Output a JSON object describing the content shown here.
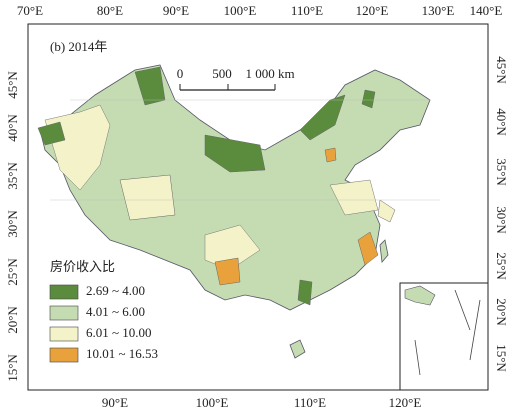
{
  "panel_label": "(b) 2014年",
  "top_axis": [
    "70°E",
    "80°E",
    "90°E",
    "100°E",
    "110°E",
    "120°E",
    "130°E",
    "140°E"
  ],
  "bottom_axis": [
    "90°E",
    "100°E",
    "110°E",
    "120°E"
  ],
  "left_axis": [
    "45°N",
    "40°N",
    "35°N",
    "30°N",
    "25°N",
    "20°N",
    "15°N"
  ],
  "right_axis": [
    "45°N",
    "40°N",
    "35°N",
    "30°N",
    "25°N",
    "20°N",
    "15°N"
  ],
  "scale_bar": {
    "labels": [
      "0",
      "500",
      "1 000 km"
    ]
  },
  "legend": {
    "title": "房价收入比",
    "items": [
      {
        "label": "2.69 ~ 4.00",
        "color": "#5b8c3e"
      },
      {
        "label": "4.01 ~ 6.00",
        "color": "#c5dcb3"
      },
      {
        "label": "6.01 ~ 10.00",
        "color": "#f3f2c8"
      },
      {
        "label": "10.01 ~ 16.53",
        "color": "#e9a23b"
      }
    ]
  }
}
